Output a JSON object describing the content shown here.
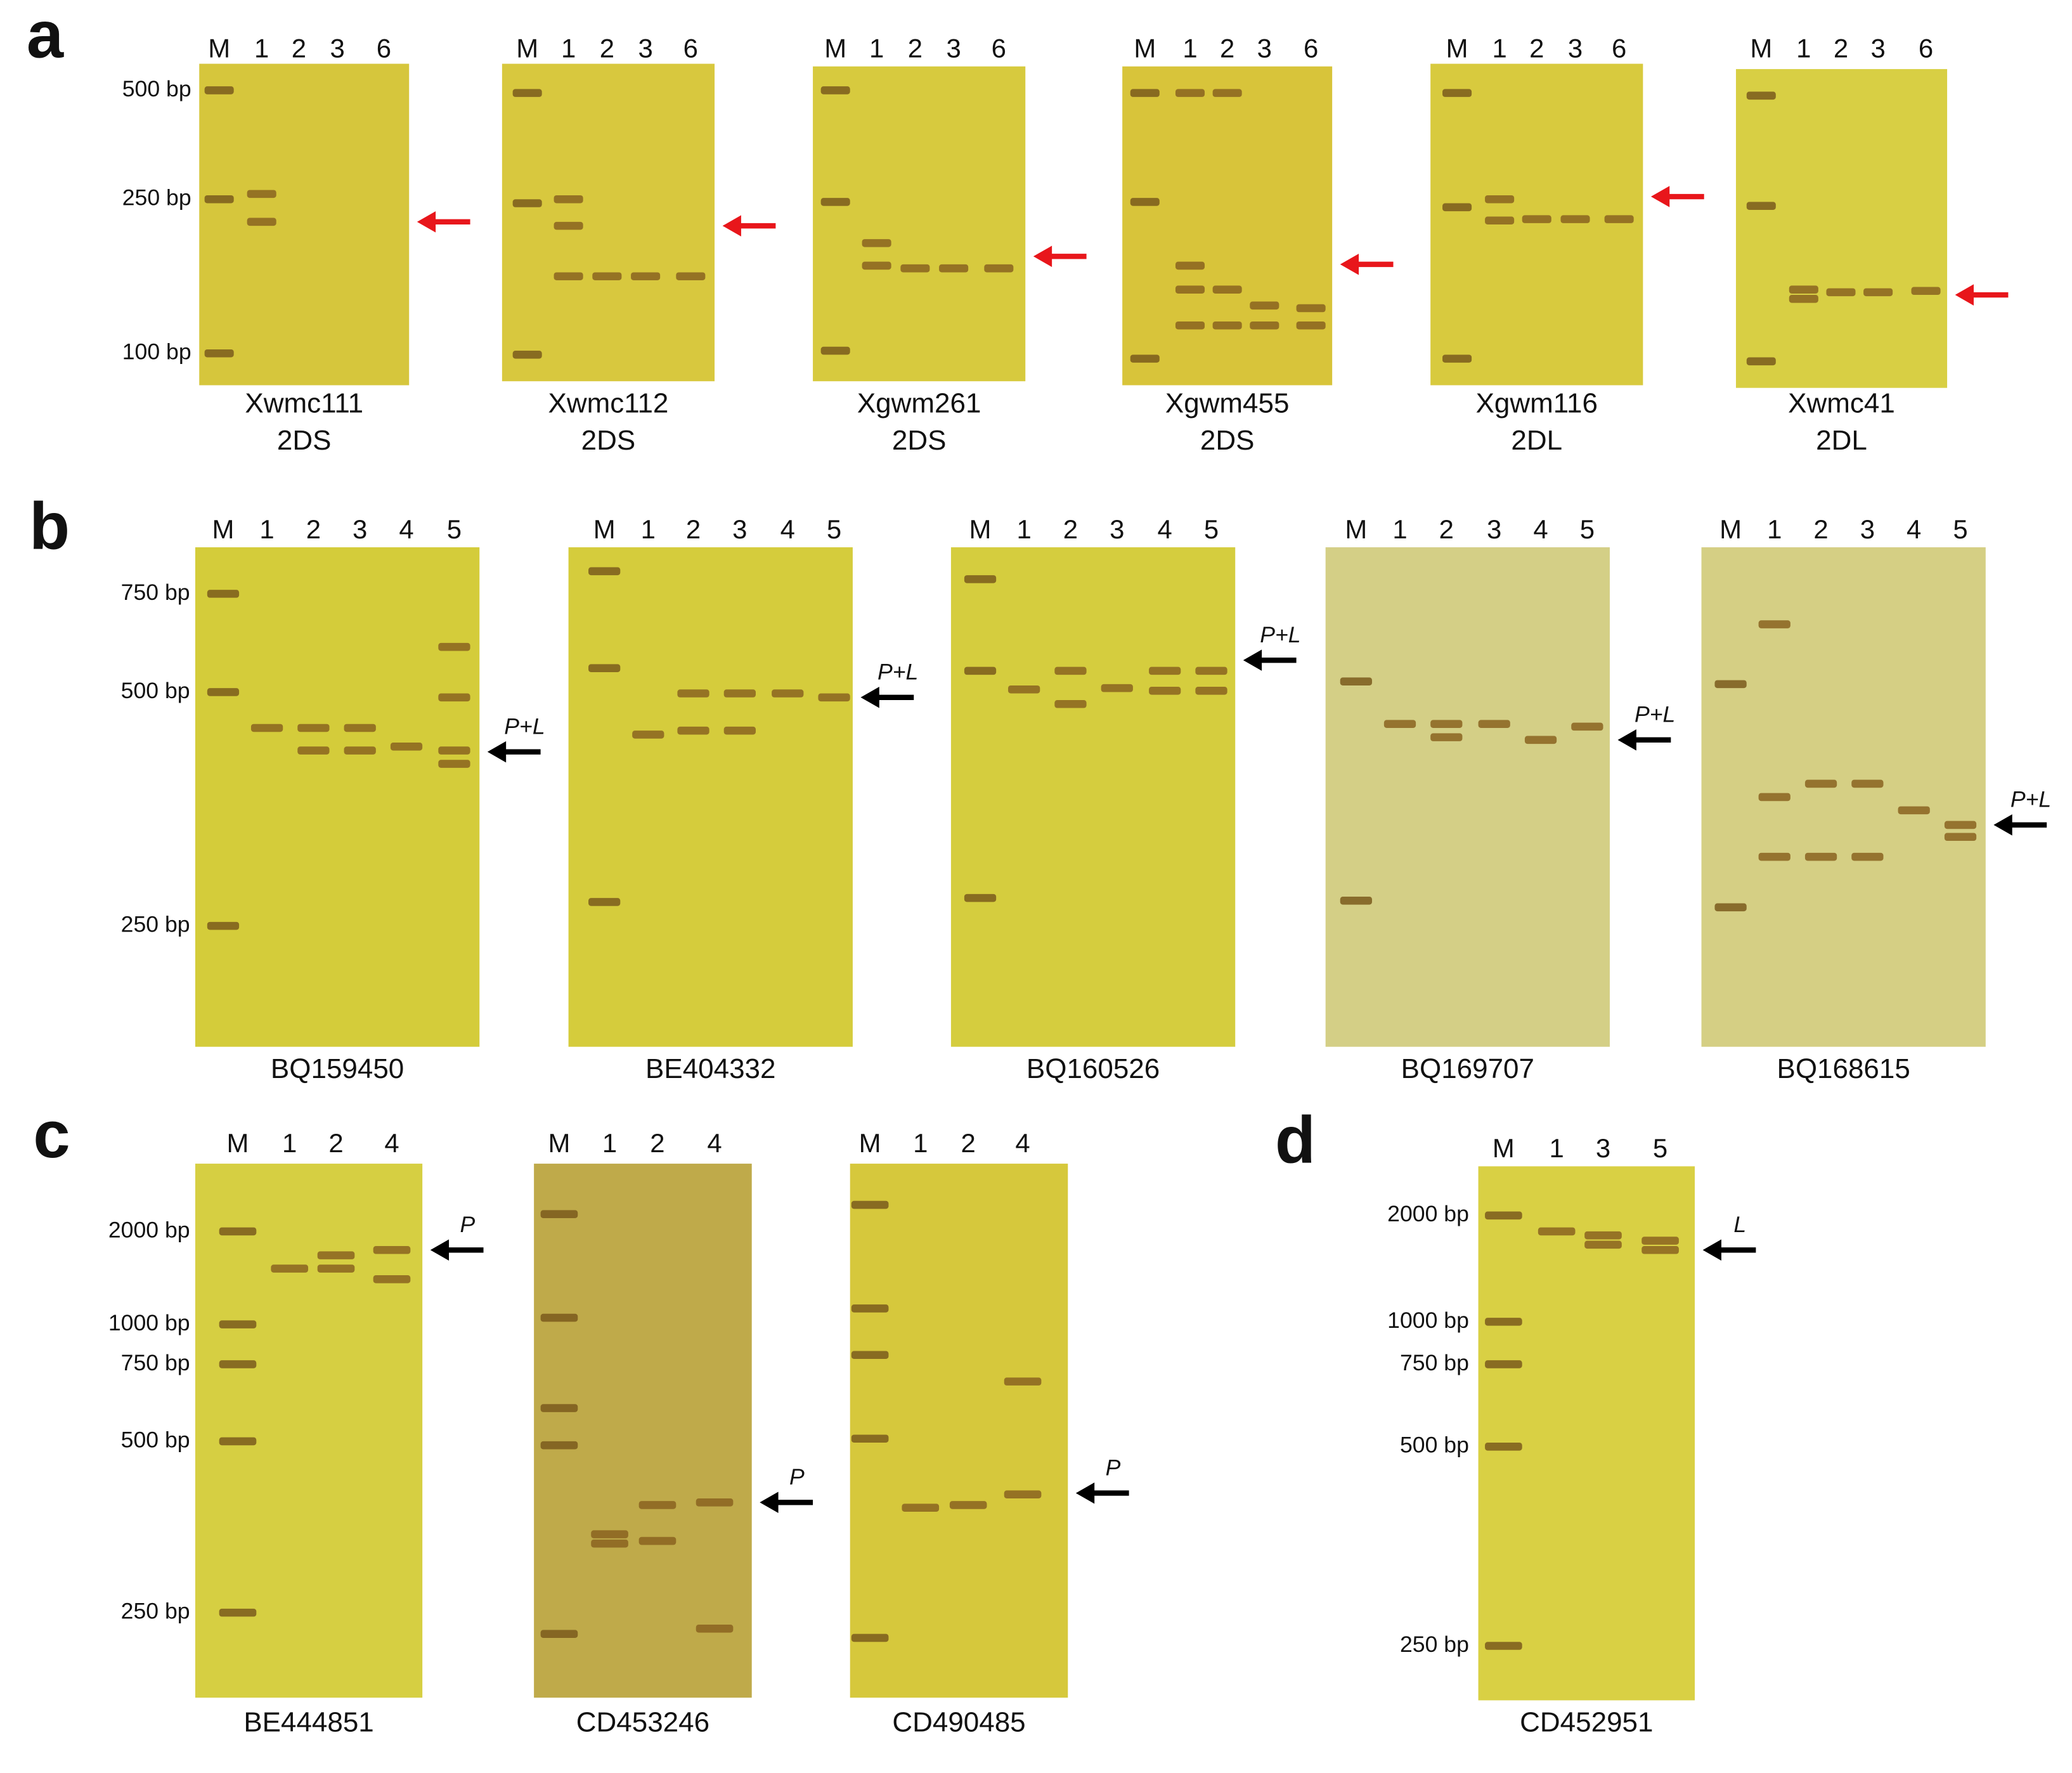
{
  "panels": [
    {
      "label": "a",
      "ladder": [
        "500 bp",
        "250 bp",
        "100 bp"
      ],
      "gels": [
        {
          "lanes": [
            "M",
            "1",
            "2",
            "3",
            "6"
          ],
          "name": "Xwmc111",
          "arm": "2DS"
        },
        {
          "lanes": [
            "M",
            "1",
            "2",
            "3",
            "6"
          ],
          "name": "Xwmc112",
          "arm": "2DS"
        },
        {
          "lanes": [
            "M",
            "1",
            "2",
            "3",
            "6"
          ],
          "name": "Xgwm261",
          "arm": "2DS"
        },
        {
          "lanes": [
            "M",
            "1",
            "2",
            "3",
            "6"
          ],
          "name": "Xgwm455",
          "arm": "2DS"
        },
        {
          "lanes": [
            "M",
            "1",
            "2",
            "3",
            "6"
          ],
          "name": "Xgwm116",
          "arm": "2DL"
        },
        {
          "lanes": [
            "M",
            "1",
            "2",
            "3",
            "6"
          ],
          "name": "Xwmc41",
          "arm": "2DL"
        }
      ]
    },
    {
      "label": "b",
      "ladder": [
        "750 bp",
        "500 bp",
        "250 bp"
      ],
      "gels": [
        {
          "lanes": [
            "M",
            "1",
            "2",
            "3",
            "4",
            "5"
          ],
          "name": "BQ159450",
          "arrow_label": "P+L"
        },
        {
          "lanes": [
            "M",
            "1",
            "2",
            "3",
            "4",
            "5"
          ],
          "name": "BE404332",
          "arrow_label": "P+L"
        },
        {
          "lanes": [
            "M",
            "1",
            "2",
            "3",
            "4",
            "5"
          ],
          "name": "BQ160526",
          "arrow_label": "P+L"
        },
        {
          "lanes": [
            "M",
            "1",
            "2",
            "3",
            "4",
            "5"
          ],
          "name": "BQ169707",
          "arrow_label": "P+L"
        },
        {
          "lanes": [
            "M",
            "1",
            "2",
            "3",
            "4",
            "5"
          ],
          "name": "BQ168615",
          "arrow_label": "P+L"
        }
      ]
    },
    {
      "label": "c",
      "ladder": [
        "2000 bp",
        "1000 bp",
        "750 bp",
        "500 bp",
        "250 bp"
      ],
      "gels": [
        {
          "lanes": [
            "M",
            "1",
            "2",
            "4"
          ],
          "name": "BE444851",
          "arrow_label": "P"
        },
        {
          "lanes": [
            "M",
            "1",
            "2",
            "4"
          ],
          "name": "CD453246",
          "arrow_label": "P"
        },
        {
          "lanes": [
            "M",
            "1",
            "2",
            "4"
          ],
          "name": "CD490485",
          "arrow_label": "P"
        }
      ]
    },
    {
      "label": "d",
      "ladder": [
        "2000 bp",
        "1000 bp",
        "750 bp",
        "500 bp",
        "250 bp"
      ],
      "gels": [
        {
          "lanes": [
            "M",
            "1",
            "3",
            "5"
          ],
          "name": "CD452951",
          "arrow_label": "L"
        }
      ]
    }
  ]
}
